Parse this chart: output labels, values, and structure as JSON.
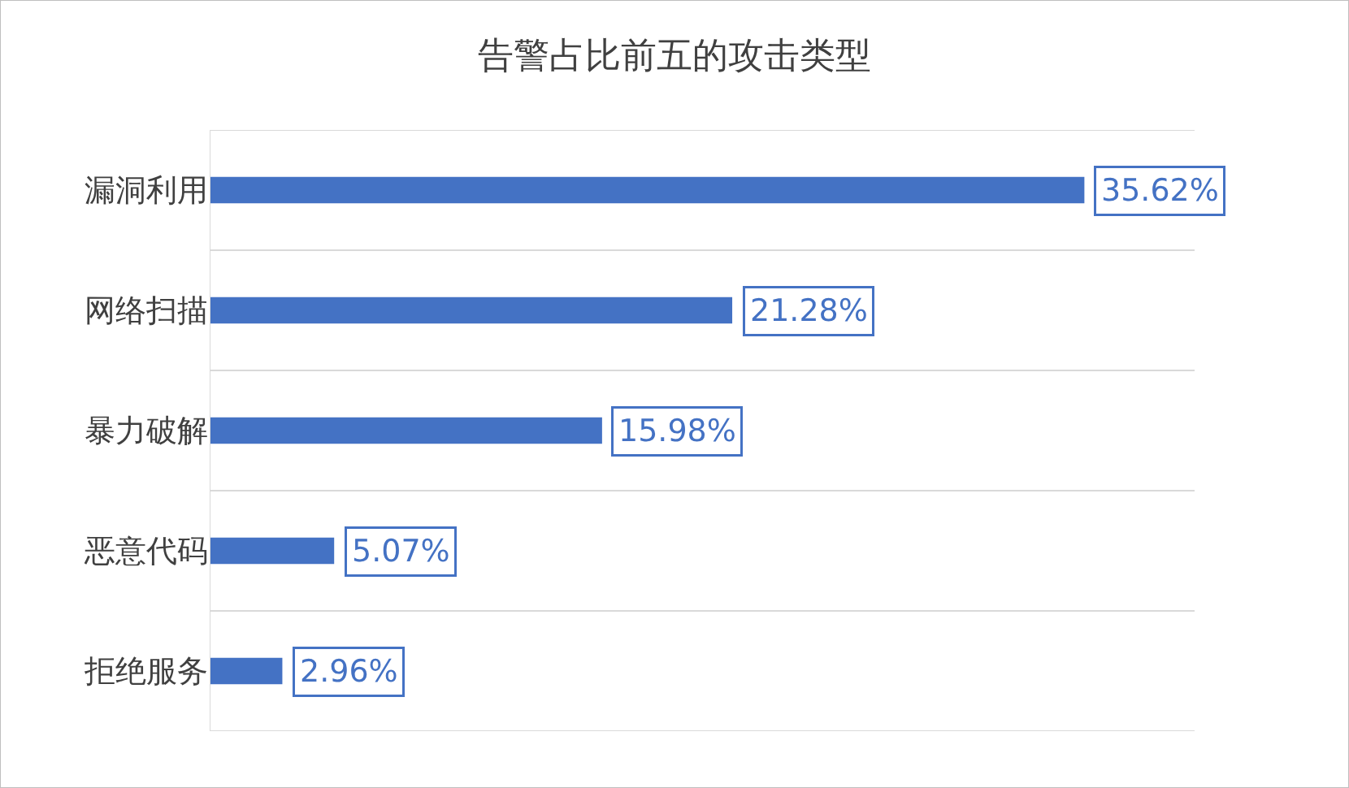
{
  "chart_data": {
    "type": "bar",
    "orientation": "horizontal",
    "title": "告警占比前五的攻击类型",
    "categories": [
      "漏洞利用",
      "网络扫描",
      "暴力破解",
      "恶意代码",
      "拒绝服务"
    ],
    "values": [
      35.62,
      21.28,
      15.98,
      5.07,
      2.96
    ],
    "value_labels": [
      "35.62%",
      "21.28%",
      "15.98%",
      "5.07%",
      "2.96%"
    ],
    "color": "#4472c4",
    "grid": "y",
    "legend": false
  }
}
